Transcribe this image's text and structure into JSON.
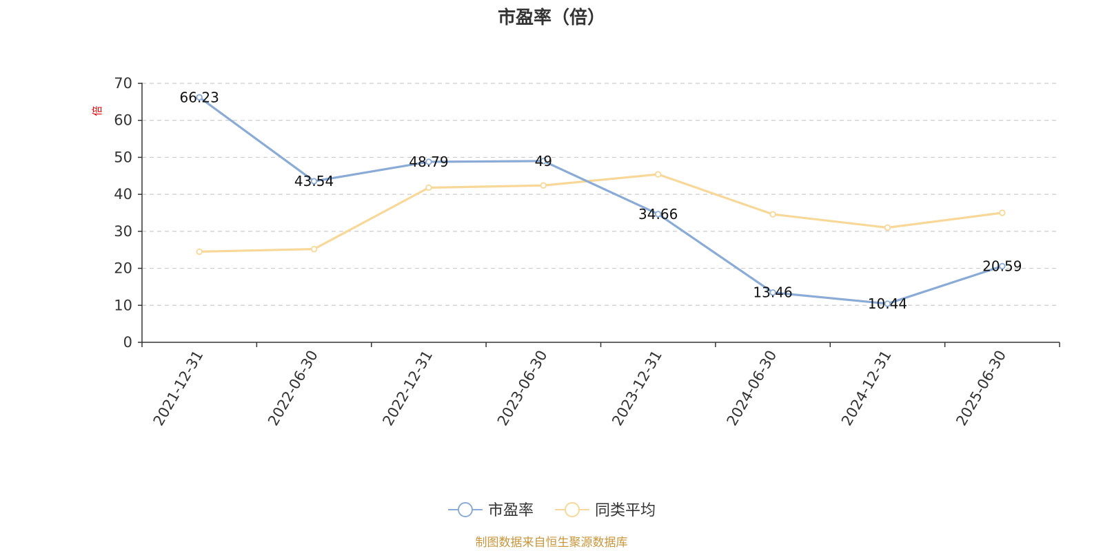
{
  "chart_data": {
    "type": "line",
    "title": "市盈率（倍）",
    "ylabel": "倍",
    "xlabel": "",
    "ylim": [
      0,
      70
    ],
    "yticks": [
      0,
      10,
      20,
      30,
      40,
      50,
      60,
      70
    ],
    "grid": true,
    "legend_position": "bottom-center",
    "categories": [
      "2021-12-31",
      "2022-06-30",
      "2022-12-31",
      "2023-06-30",
      "2023-12-31",
      "2024-06-30",
      "2024-12-31",
      "2025-06-30"
    ],
    "series": [
      {
        "name": "市盈率",
        "color": "#8aabd6",
        "values": [
          66.23,
          43.54,
          48.79,
          49,
          34.66,
          13.46,
          10.44,
          20.59
        ],
        "labels": [
          "66.23",
          "43.54",
          "48.79",
          "49",
          "34.66",
          "13.46",
          "10.44",
          "20.59"
        ]
      },
      {
        "name": "同类平均",
        "color": "#f8d898",
        "values": [
          24.5,
          25.2,
          41.8,
          42.4,
          45.4,
          34.6,
          31.0,
          35.0
        ]
      }
    ]
  },
  "source_text": "制图数据来自恒生聚源数据库"
}
